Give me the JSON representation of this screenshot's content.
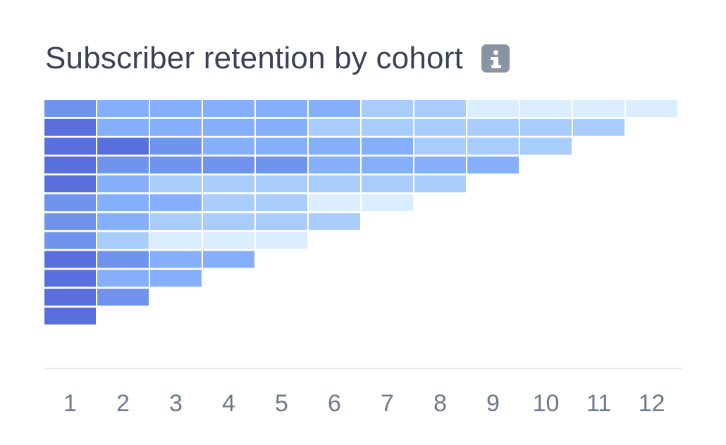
{
  "title": "Subscriber retention by cohort",
  "info_icon": "info-icon",
  "colors": {
    "title": "#3b4256",
    "axis_label": "#6f7a8c",
    "baseline": "#e3e5ea",
    "scale": [
      "#dbeeff",
      "#a9cdfb",
      "#85affa",
      "#7093ee",
      "#5a6fde"
    ]
  },
  "chart_data": {
    "type": "heatmap",
    "title": "Subscriber retention by cohort",
    "xlabel": "",
    "ylabel": "",
    "x_tick_labels": [
      "1",
      "2",
      "3",
      "4",
      "5",
      "6",
      "7",
      "8",
      "9",
      "10",
      "11",
      "12"
    ],
    "value_scale": "intensity levels 0 (lightest) to 4 (darkest)",
    "rows": [
      [
        3,
        2,
        2,
        2,
        2,
        2,
        1,
        1,
        0,
        0,
        0,
        0
      ],
      [
        4,
        2,
        2,
        2,
        2,
        1,
        1,
        1,
        1,
        1,
        1
      ],
      [
        4,
        4,
        3,
        2,
        2,
        2,
        2,
        1,
        1,
        1
      ],
      [
        4,
        3,
        3,
        3,
        3,
        2,
        2,
        2,
        2
      ],
      [
        4,
        2,
        1,
        1,
        1,
        1,
        1,
        1
      ],
      [
        3,
        2,
        2,
        1,
        1,
        0,
        0
      ],
      [
        3,
        2,
        1,
        1,
        1,
        1
      ],
      [
        3,
        1,
        0,
        0,
        0
      ],
      [
        4,
        3,
        2,
        2
      ],
      [
        4,
        2,
        2
      ],
      [
        4,
        3
      ],
      [
        4
      ]
    ]
  }
}
